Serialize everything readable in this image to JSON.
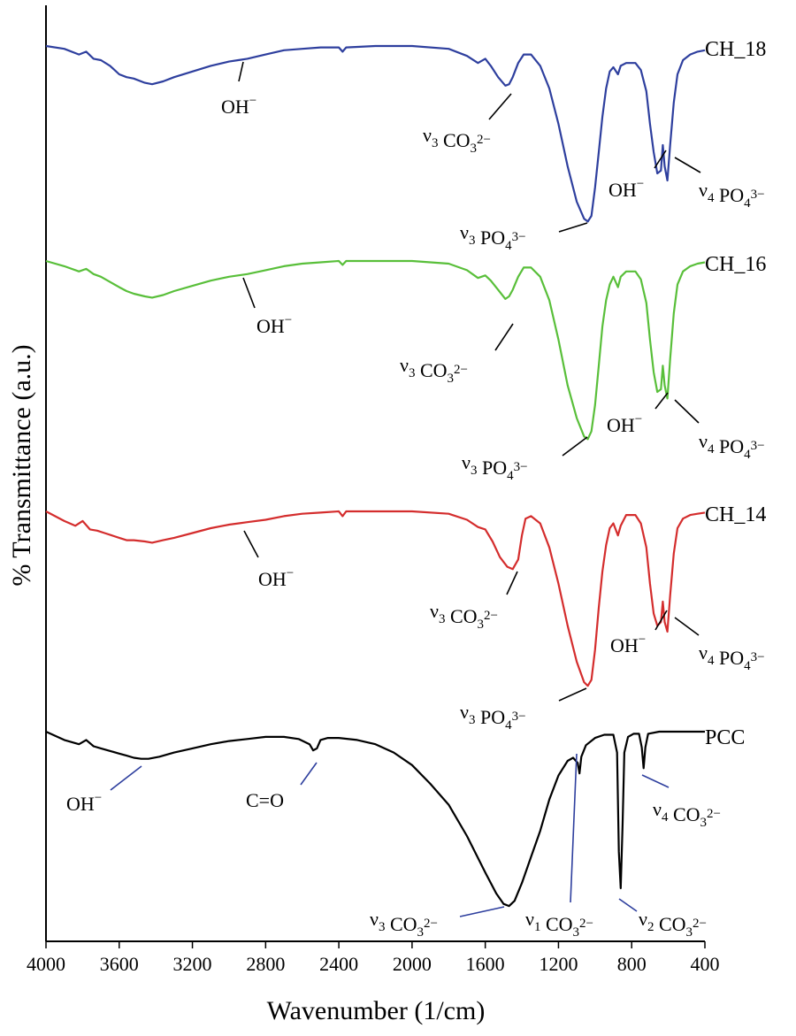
{
  "chart_data": {
    "type": "line",
    "xlabel": "Wavenumber (1/cm)",
    "ylabel": "% Transmittance (a.u.)",
    "xlim": [
      4000,
      400
    ],
    "x_reversed": true,
    "xticks": [
      "4000",
      "3600",
      "3200",
      "2800",
      "2400",
      "2000",
      "1600",
      "1200",
      "800",
      "400"
    ],
    "grid": false,
    "series": [
      {
        "name": "CH_18",
        "color": "#2e3f9e",
        "points": [
          [
            4000,
            0.0
          ],
          [
            3900,
            -0.02
          ],
          [
            3820,
            -0.06
          ],
          [
            3780,
            -0.04
          ],
          [
            3740,
            -0.09
          ],
          [
            3700,
            -0.1
          ],
          [
            3650,
            -0.14
          ],
          [
            3600,
            -0.2
          ],
          [
            3560,
            -0.22
          ],
          [
            3520,
            -0.23
          ],
          [
            3460,
            -0.26
          ],
          [
            3420,
            -0.27
          ],
          [
            3360,
            -0.25
          ],
          [
            3300,
            -0.22
          ],
          [
            3200,
            -0.18
          ],
          [
            3100,
            -0.14
          ],
          [
            3000,
            -0.11
          ],
          [
            2950,
            -0.1
          ],
          [
            2900,
            -0.09
          ],
          [
            2800,
            -0.06
          ],
          [
            2700,
            -0.03
          ],
          [
            2600,
            -0.02
          ],
          [
            2500,
            -0.01
          ],
          [
            2400,
            -0.01
          ],
          [
            2380,
            -0.04
          ],
          [
            2360,
            -0.01
          ],
          [
            2200,
            0.0
          ],
          [
            2000,
            0.0
          ],
          [
            1800,
            -0.02
          ],
          [
            1700,
            -0.07
          ],
          [
            1640,
            -0.12
          ],
          [
            1600,
            -0.09
          ],
          [
            1570,
            -0.14
          ],
          [
            1530,
            -0.22
          ],
          [
            1490,
            -0.28
          ],
          [
            1470,
            -0.27
          ],
          [
            1450,
            -0.22
          ],
          [
            1420,
            -0.12
          ],
          [
            1390,
            -0.06
          ],
          [
            1350,
            -0.06
          ],
          [
            1300,
            -0.14
          ],
          [
            1250,
            -0.3
          ],
          [
            1200,
            -0.55
          ],
          [
            1150,
            -0.85
          ],
          [
            1100,
            -1.1
          ],
          [
            1060,
            -1.22
          ],
          [
            1040,
            -1.24
          ],
          [
            1020,
            -1.2
          ],
          [
            1000,
            -1.0
          ],
          [
            980,
            -0.75
          ],
          [
            960,
            -0.5
          ],
          [
            940,
            -0.3
          ],
          [
            920,
            -0.18
          ],
          [
            900,
            -0.15
          ],
          [
            875,
            -0.2
          ],
          [
            860,
            -0.14
          ],
          [
            830,
            -0.12
          ],
          [
            780,
            -0.12
          ],
          [
            750,
            -0.17
          ],
          [
            720,
            -0.32
          ],
          [
            700,
            -0.55
          ],
          [
            680,
            -0.75
          ],
          [
            660,
            -0.9
          ],
          [
            640,
            -0.88
          ],
          [
            630,
            -0.7
          ],
          [
            620,
            -0.85
          ],
          [
            605,
            -0.95
          ],
          [
            590,
            -0.7
          ],
          [
            570,
            -0.4
          ],
          [
            550,
            -0.2
          ],
          [
            520,
            -0.1
          ],
          [
            480,
            -0.06
          ],
          [
            440,
            -0.04
          ],
          [
            400,
            -0.03
          ]
        ]
      },
      {
        "name": "CH_16",
        "color": "#59bf3a",
        "points": [
          [
            4000,
            0.0
          ],
          [
            3900,
            -0.04
          ],
          [
            3820,
            -0.08
          ],
          [
            3780,
            -0.06
          ],
          [
            3740,
            -0.1
          ],
          [
            3700,
            -0.12
          ],
          [
            3650,
            -0.16
          ],
          [
            3600,
            -0.2
          ],
          [
            3560,
            -0.23
          ],
          [
            3520,
            -0.25
          ],
          [
            3460,
            -0.27
          ],
          [
            3420,
            -0.28
          ],
          [
            3360,
            -0.26
          ],
          [
            3300,
            -0.23
          ],
          [
            3200,
            -0.19
          ],
          [
            3100,
            -0.15
          ],
          [
            3000,
            -0.12
          ],
          [
            2950,
            -0.11
          ],
          [
            2900,
            -0.1
          ],
          [
            2800,
            -0.07
          ],
          [
            2700,
            -0.04
          ],
          [
            2600,
            -0.02
          ],
          [
            2500,
            -0.01
          ],
          [
            2400,
            0.0
          ],
          [
            2380,
            -0.03
          ],
          [
            2360,
            0.0
          ],
          [
            2200,
            0.0
          ],
          [
            2000,
            0.0
          ],
          [
            1800,
            -0.02
          ],
          [
            1700,
            -0.07
          ],
          [
            1640,
            -0.13
          ],
          [
            1600,
            -0.11
          ],
          [
            1570,
            -0.15
          ],
          [
            1530,
            -0.22
          ],
          [
            1490,
            -0.29
          ],
          [
            1470,
            -0.27
          ],
          [
            1450,
            -0.22
          ],
          [
            1420,
            -0.12
          ],
          [
            1390,
            -0.05
          ],
          [
            1350,
            -0.05
          ],
          [
            1300,
            -0.12
          ],
          [
            1250,
            -0.3
          ],
          [
            1200,
            -0.6
          ],
          [
            1150,
            -0.95
          ],
          [
            1100,
            -1.2
          ],
          [
            1060,
            -1.34
          ],
          [
            1040,
            -1.36
          ],
          [
            1020,
            -1.3
          ],
          [
            1000,
            -1.1
          ],
          [
            980,
            -0.8
          ],
          [
            960,
            -0.5
          ],
          [
            940,
            -0.3
          ],
          [
            920,
            -0.18
          ],
          [
            900,
            -0.12
          ],
          [
            875,
            -0.2
          ],
          [
            860,
            -0.12
          ],
          [
            830,
            -0.08
          ],
          [
            780,
            -0.08
          ],
          [
            750,
            -0.14
          ],
          [
            720,
            -0.32
          ],
          [
            700,
            -0.6
          ],
          [
            680,
            -0.85
          ],
          [
            660,
            -1.0
          ],
          [
            640,
            -0.98
          ],
          [
            630,
            -0.8
          ],
          [
            620,
            -0.95
          ],
          [
            605,
            -1.05
          ],
          [
            590,
            -0.75
          ],
          [
            570,
            -0.4
          ],
          [
            550,
            -0.18
          ],
          [
            520,
            -0.08
          ],
          [
            480,
            -0.04
          ],
          [
            440,
            -0.02
          ],
          [
            400,
            -0.01
          ]
        ]
      },
      {
        "name": "CH_14",
        "color": "#d42d2d",
        "points": [
          [
            4000,
            0.0
          ],
          [
            3900,
            -0.08
          ],
          [
            3840,
            -0.12
          ],
          [
            3800,
            -0.08
          ],
          [
            3760,
            -0.15
          ],
          [
            3720,
            -0.16
          ],
          [
            3680,
            -0.18
          ],
          [
            3640,
            -0.2
          ],
          [
            3600,
            -0.22
          ],
          [
            3560,
            -0.24
          ],
          [
            3520,
            -0.24
          ],
          [
            3460,
            -0.25
          ],
          [
            3420,
            -0.26
          ],
          [
            3360,
            -0.24
          ],
          [
            3300,
            -0.22
          ],
          [
            3200,
            -0.18
          ],
          [
            3100,
            -0.14
          ],
          [
            3000,
            -0.11
          ],
          [
            2950,
            -0.1
          ],
          [
            2900,
            -0.09
          ],
          [
            2800,
            -0.07
          ],
          [
            2700,
            -0.04
          ],
          [
            2600,
            -0.02
          ],
          [
            2500,
            -0.01
          ],
          [
            2400,
            0.0
          ],
          [
            2380,
            -0.04
          ],
          [
            2360,
            0.0
          ],
          [
            2200,
            0.0
          ],
          [
            2000,
            0.0
          ],
          [
            1800,
            -0.02
          ],
          [
            1700,
            -0.07
          ],
          [
            1640,
            -0.13
          ],
          [
            1600,
            -0.15
          ],
          [
            1560,
            -0.25
          ],
          [
            1520,
            -0.38
          ],
          [
            1480,
            -0.46
          ],
          [
            1450,
            -0.48
          ],
          [
            1420,
            -0.4
          ],
          [
            1400,
            -0.2
          ],
          [
            1380,
            -0.06
          ],
          [
            1350,
            -0.04
          ],
          [
            1300,
            -0.1
          ],
          [
            1250,
            -0.3
          ],
          [
            1200,
            -0.6
          ],
          [
            1150,
            -0.95
          ],
          [
            1100,
            -1.25
          ],
          [
            1060,
            -1.42
          ],
          [
            1040,
            -1.45
          ],
          [
            1020,
            -1.4
          ],
          [
            1000,
            -1.15
          ],
          [
            980,
            -0.8
          ],
          [
            960,
            -0.5
          ],
          [
            940,
            -0.28
          ],
          [
            920,
            -0.14
          ],
          [
            900,
            -0.1
          ],
          [
            875,
            -0.2
          ],
          [
            860,
            -0.12
          ],
          [
            830,
            -0.03
          ],
          [
            780,
            -0.03
          ],
          [
            750,
            -0.1
          ],
          [
            720,
            -0.3
          ],
          [
            700,
            -0.6
          ],
          [
            680,
            -0.85
          ],
          [
            660,
            -0.95
          ],
          [
            640,
            -0.92
          ],
          [
            630,
            -0.75
          ],
          [
            620,
            -0.92
          ],
          [
            605,
            -1.0
          ],
          [
            590,
            -0.7
          ],
          [
            570,
            -0.35
          ],
          [
            550,
            -0.14
          ],
          [
            520,
            -0.06
          ],
          [
            480,
            -0.03
          ],
          [
            440,
            -0.02
          ],
          [
            400,
            -0.01
          ]
        ]
      },
      {
        "name": "PCC",
        "color": "#000000",
        "points": [
          [
            4000,
            0.0
          ],
          [
            3900,
            -0.08
          ],
          [
            3820,
            -0.12
          ],
          [
            3780,
            -0.08
          ],
          [
            3740,
            -0.14
          ],
          [
            3700,
            -0.16
          ],
          [
            3640,
            -0.19
          ],
          [
            3600,
            -0.21
          ],
          [
            3560,
            -0.23
          ],
          [
            3520,
            -0.25
          ],
          [
            3480,
            -0.26
          ],
          [
            3440,
            -0.26
          ],
          [
            3380,
            -0.24
          ],
          [
            3300,
            -0.2
          ],
          [
            3200,
            -0.16
          ],
          [
            3100,
            -0.12
          ],
          [
            3000,
            -0.09
          ],
          [
            2900,
            -0.07
          ],
          [
            2800,
            -0.05
          ],
          [
            2700,
            -0.05
          ],
          [
            2620,
            -0.07
          ],
          [
            2560,
            -0.12
          ],
          [
            2540,
            -0.18
          ],
          [
            2520,
            -0.16
          ],
          [
            2500,
            -0.08
          ],
          [
            2460,
            -0.06
          ],
          [
            2400,
            -0.06
          ],
          [
            2300,
            -0.08
          ],
          [
            2200,
            -0.12
          ],
          [
            2100,
            -0.2
          ],
          [
            2000,
            -0.32
          ],
          [
            1900,
            -0.5
          ],
          [
            1800,
            -0.7
          ],
          [
            1700,
            -1.0
          ],
          [
            1600,
            -1.35
          ],
          [
            1540,
            -1.55
          ],
          [
            1500,
            -1.65
          ],
          [
            1470,
            -1.67
          ],
          [
            1440,
            -1.62
          ],
          [
            1400,
            -1.45
          ],
          [
            1350,
            -1.2
          ],
          [
            1300,
            -0.95
          ],
          [
            1250,
            -0.65
          ],
          [
            1200,
            -0.42
          ],
          [
            1150,
            -0.28
          ],
          [
            1120,
            -0.25
          ],
          [
            1095,
            -0.3
          ],
          [
            1085,
            -0.4
          ],
          [
            1075,
            -0.24
          ],
          [
            1050,
            -0.13
          ],
          [
            1000,
            -0.06
          ],
          [
            950,
            -0.03
          ],
          [
            900,
            -0.03
          ],
          [
            880,
            -0.2
          ],
          [
            870,
            -1.15
          ],
          [
            860,
            -1.5
          ],
          [
            850,
            -0.9
          ],
          [
            840,
            -0.2
          ],
          [
            820,
            -0.05
          ],
          [
            790,
            -0.02
          ],
          [
            760,
            -0.02
          ],
          [
            745,
            -0.15
          ],
          [
            735,
            -0.35
          ],
          [
            725,
            -0.15
          ],
          [
            710,
            -0.02
          ],
          [
            650,
            0.0
          ],
          [
            550,
            0.0
          ],
          [
            450,
            0.0
          ],
          [
            400,
            0.0
          ]
        ]
      }
    ],
    "annotations": {
      "ch18": [
        "OH⁻",
        "ν₃ CO₃²⁻",
        "ν₃ PO₄³⁻",
        "OH⁻",
        "ν₄ PO₄³⁻"
      ],
      "ch16": [
        "OH⁻",
        "ν₃ CO₃²⁻",
        "ν₃ PO₄³⁻",
        "OH⁻",
        "ν₄ PO₄³⁻"
      ],
      "ch14": [
        "OH⁻",
        "ν₃ CO₃²⁻",
        "ν₃ PO₄³⁻",
        "OH⁻",
        "ν₄ PO₄³⁻"
      ],
      "pcc": [
        "OH⁻",
        "C=O",
        "ν₃ CO₃²⁻",
        "ν₁ CO₃²⁻",
        "ν₂ CO₃²⁻",
        "ν₄ CO₃²⁻"
      ]
    },
    "leader_colors": {
      "ch18": "#000000",
      "ch16": "#000000",
      "ch14": "#000000",
      "pcc": "#2e3f9e"
    }
  }
}
